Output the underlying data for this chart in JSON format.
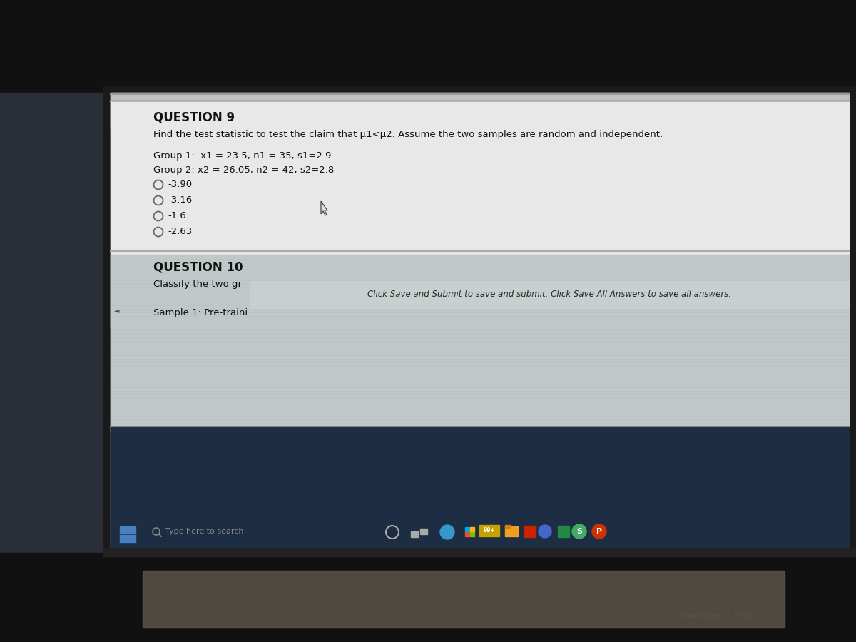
{
  "bg_outer": "#1a1a1a",
  "bg_left_bezel": "#2a2e38",
  "bg_screen_light": "#d8d8d8",
  "bg_content_white": "#e8e8e8",
  "bg_question10_area": "#bdc8c8",
  "bg_taskbar": "#1c2d44",
  "bg_monitor_bottom": "#222222",
  "bg_stand": "#888070",
  "question9_header": "QUESTION 9",
  "question9_text": "Find the test statistic to test the claim that μ1<μ2. Assume the two samples are random and independent.",
  "group1_text": "Group 1:  x1 = 23.5, n1 = 35, s1=2.9",
  "group2_text": "Group 2: x2 = 26.05, n2 = 42, s2=2.8",
  "options": [
    "-3.90",
    "-3.16",
    "-1.6",
    "-2.63"
  ],
  "question10_header": "QUESTION 10",
  "question10_text": "Classify the two gi",
  "popup_text": "Click Save and Submit to save and submit. Click Save All Answers to save all answers.",
  "sample_text": "Sample 1: Pre-traini",
  "taskbar_search": "Type here to search",
  "hewlett_text": "HEWLETT-PACKARD"
}
